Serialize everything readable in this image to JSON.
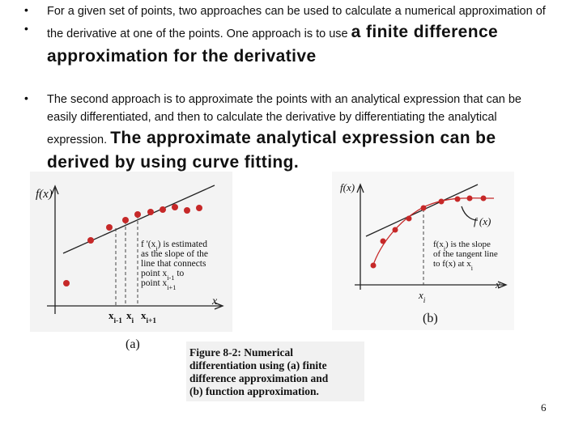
{
  "bullets": [
    {
      "text": "For a given set of points, two approaches can be used to calculate a numerical approximation of the derivative at one of the points. One approach is to use",
      "emphasis": "a finite difference approximation for the derivative"
    },
    {
      "text": "The second approach is to approximate the points with an analytical expression that can be easily differentiated, and then to calculate the derivative by differentiating the analytical expression.",
      "emphasis": "The approximate analytical expression can be derived by using curve fitting."
    }
  ],
  "figure_a": {
    "y_label": "f(x)",
    "x_label": "x",
    "annotation": [
      [
        "f '(x",
        "i",
        ") is estimated"
      ],
      [
        "as the slope of the"
      ],
      [
        "line that connects"
      ],
      [
        "point x",
        "i-1",
        " to"
      ],
      [
        "point x",
        "i+1"
      ]
    ],
    "ticks": [
      [
        "x",
        "i-1"
      ],
      [
        "x",
        "i"
      ],
      [
        "x",
        "i+1"
      ]
    ],
    "tag": "(a)"
  },
  "figure_b": {
    "y_label": "f(x)",
    "curve_label": "f (x)",
    "x_label": "x",
    "annotation": [
      [
        "f(x",
        "i",
        ") is the slope"
      ],
      [
        "of the tangent line"
      ],
      [
        "to f(x) at x",
        "i"
      ]
    ],
    "tick": [
      "x",
      "i"
    ],
    "tag": "(b)"
  },
  "caption": [
    "Figure 8-2:  Numerical",
    "differentiation using (a) finite",
    "difference approximation and",
    "(b) function approximation."
  ],
  "page_number": "6"
}
